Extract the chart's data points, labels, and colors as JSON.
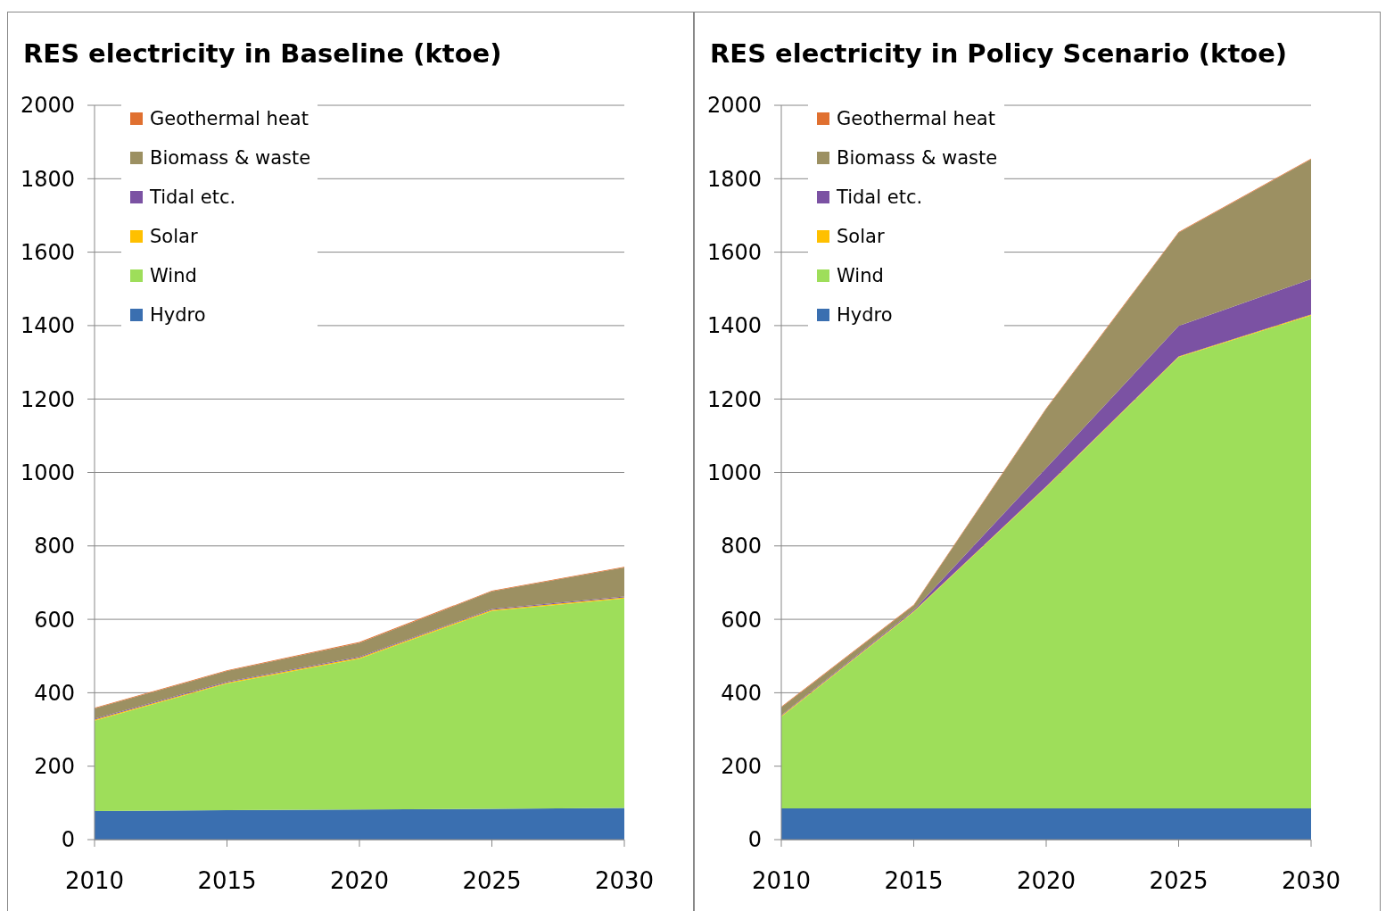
{
  "chart_data": [
    {
      "type": "area",
      "title": "RES electricity in Baseline (ktoe)",
      "x": [
        2010,
        2015,
        2020,
        2025,
        2030
      ],
      "xlim": [
        2010,
        2030
      ],
      "xticks": [
        2010,
        2015,
        2020,
        2025,
        2030
      ],
      "ylim": [
        0,
        2000
      ],
      "yticks": [
        0,
        200,
        400,
        600,
        800,
        1000,
        1200,
        1400,
        1600,
        1800,
        2000
      ],
      "stacked": true,
      "grid": "y",
      "legend": "top left",
      "series": [
        {
          "name": "Hydro",
          "color": "#3a6fb0",
          "values": [
            78,
            80,
            82,
            84,
            86
          ]
        },
        {
          "name": "Wind",
          "color": "#9ede5a",
          "values": [
            246,
            345,
            411,
            539,
            571
          ]
        },
        {
          "name": "Solar",
          "color": "#ffc000",
          "values": [
            3,
            3,
            3,
            3,
            3
          ]
        },
        {
          "name": "Tidal etc.",
          "color": "#7b52a3",
          "values": [
            2,
            2,
            2,
            2,
            2
          ]
        },
        {
          "name": "Biomass & waste",
          "color": "#9c9062",
          "values": [
            28,
            29,
            38,
            48,
            79
          ]
        },
        {
          "name": "Geothermal heat",
          "color": "#e07030",
          "values": [
            2,
            2,
            2,
            2,
            2
          ]
        }
      ]
    },
    {
      "type": "area",
      "title": "RES electricity in Policy Scenario (ktoe)",
      "x": [
        2010,
        2015,
        2020,
        2025,
        2030
      ],
      "xlim": [
        2010,
        2030
      ],
      "xticks": [
        2010,
        2015,
        2020,
        2025,
        2030
      ],
      "ylim": [
        0,
        2000
      ],
      "yticks": [
        0,
        200,
        400,
        600,
        800,
        1000,
        1200,
        1400,
        1600,
        1800,
        2000
      ],
      "stacked": true,
      "grid": "y",
      "legend": "top left",
      "series": [
        {
          "name": "Hydro",
          "color": "#3a6fb0",
          "values": [
            85,
            85,
            85,
            85,
            85
          ]
        },
        {
          "name": "Wind",
          "color": "#9ede5a",
          "values": [
            250,
            535,
            875,
            1229,
            1343
          ]
        },
        {
          "name": "Solar",
          "color": "#ffc000",
          "values": [
            2,
            2,
            2,
            2,
            2
          ]
        },
        {
          "name": "Tidal etc.",
          "color": "#7b52a3",
          "values": [
            2,
            3,
            50,
            83,
            97
          ]
        },
        {
          "name": "Biomass & waste",
          "color": "#9c9062",
          "values": [
            21,
            13,
            161,
            254,
            326
          ]
        },
        {
          "name": "Geothermal heat",
          "color": "#e07030",
          "values": [
            2,
            2,
            2,
            2,
            2
          ]
        }
      ]
    }
  ]
}
